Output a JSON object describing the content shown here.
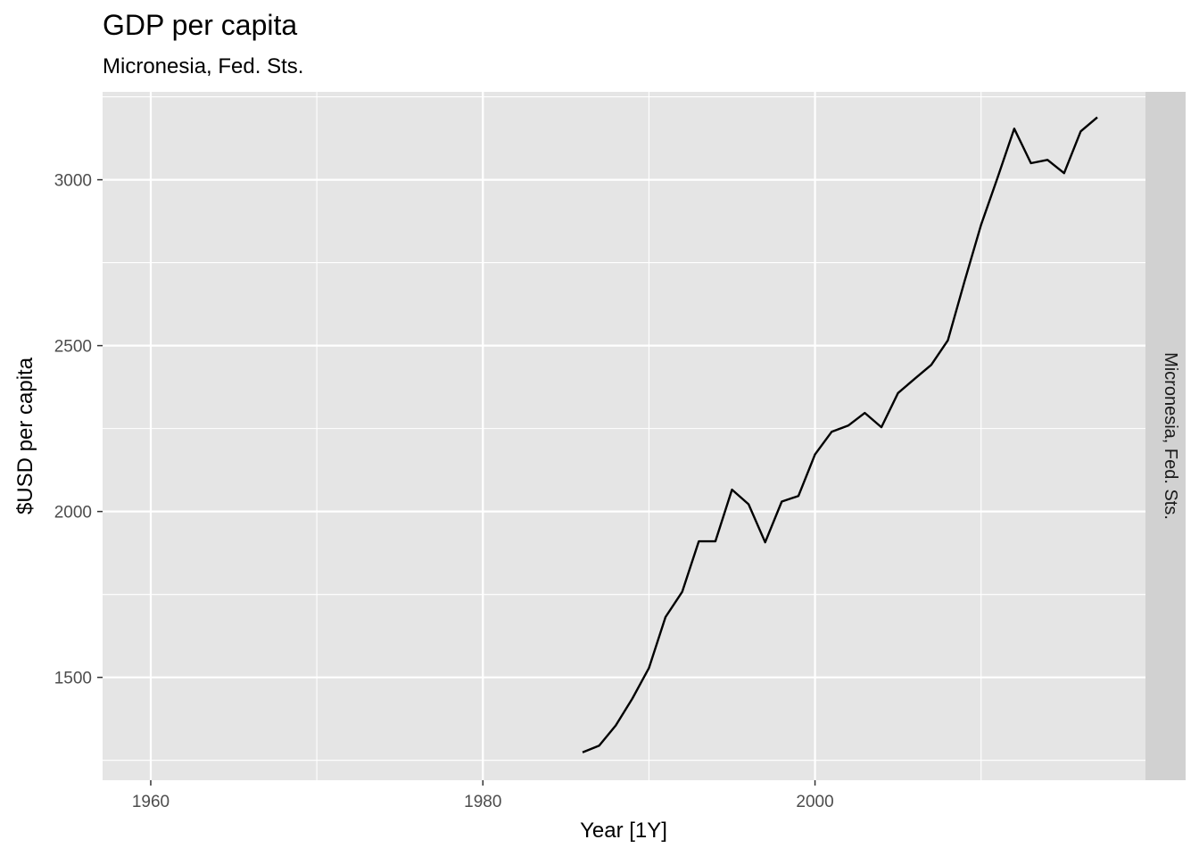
{
  "chart_data": {
    "type": "line",
    "title": "GDP per capita",
    "subtitle": "Micronesia, Fed. Sts.",
    "xlabel": "Year [1Y]",
    "ylabel": "$USD per capita",
    "facet_label": "Micronesia, Fed. Sts.",
    "xlim": [
      1957.1,
      2019.9
    ],
    "ylim": [
      1190,
      3265
    ],
    "x_ticks": [
      1960,
      1980,
      2000
    ],
    "x_minor_ticks": [
      1970,
      1990,
      2010
    ],
    "y_ticks": [
      1500,
      2000,
      2500,
      3000
    ],
    "y_minor_ticks": [
      1250,
      1750,
      2250,
      2750,
      3250
    ],
    "grid": true,
    "colors": {
      "panel": "#e5e5e5",
      "grid": "#ffffff",
      "line": "#000000",
      "strip": "#d1d1d1"
    },
    "series": [
      {
        "x": [
          1986,
          1987,
          1988,
          1989,
          1990,
          1991,
          1992,
          1993,
          1994,
          1995,
          1996,
          1997,
          1998,
          1999,
          2000,
          2001,
          2002,
          2003,
          2004,
          2005,
          2006,
          2007,
          2008,
          2009,
          2010,
          2011,
          2012,
          2013,
          2014,
          2015,
          2016,
          2017
        ],
        "values": [
          1274,
          1294,
          1355,
          1436,
          1528,
          1682,
          1758,
          1910,
          1910,
          2066,
          2022,
          1907,
          2030,
          2047,
          2172,
          2240,
          2259,
          2297,
          2254,
          2357,
          2400,
          2442,
          2516,
          2693,
          2864,
          3007,
          3154,
          3050,
          3060,
          3020,
          3146,
          3188
        ]
      }
    ]
  }
}
